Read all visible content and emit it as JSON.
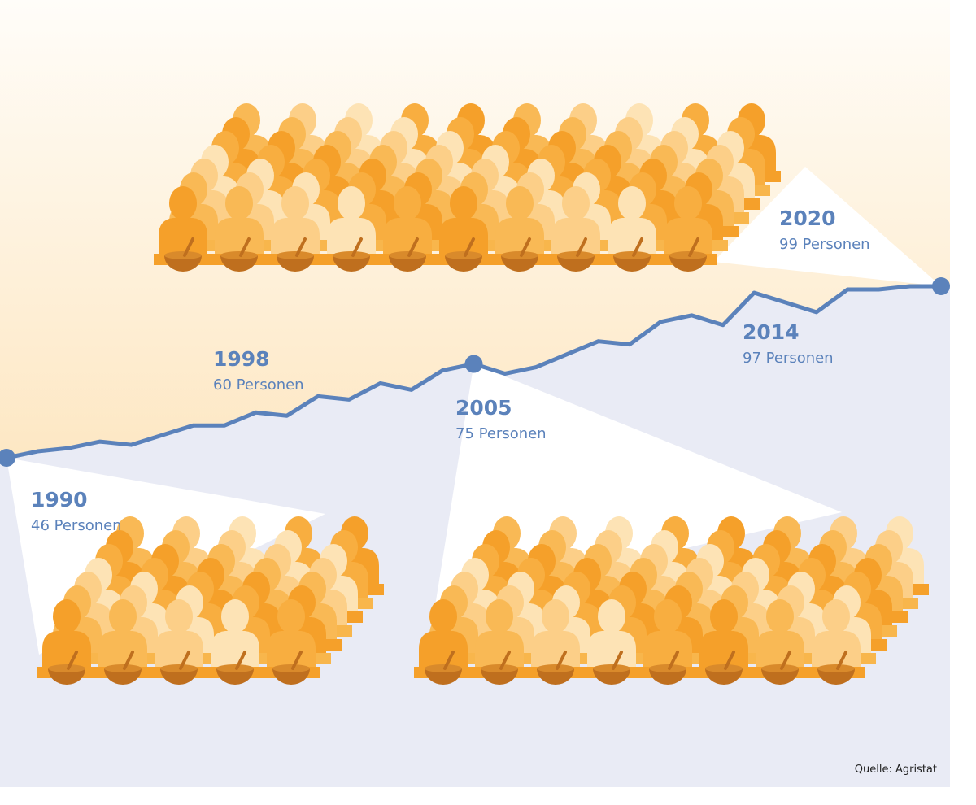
{
  "chart_data": {
    "type": "line",
    "x": [
      1990,
      1991,
      1992,
      1993,
      1994,
      1995,
      1996,
      1997,
      1998,
      1999,
      2000,
      2001,
      2002,
      2003,
      2004,
      2005,
      2006,
      2007,
      2008,
      2009,
      2010,
      2011,
      2012,
      2013,
      2014,
      2015,
      2016,
      2017,
      2018,
      2019,
      2020
    ],
    "series": [
      {
        "color": "#5b82bb",
        "values": [
          46,
          48,
          49,
          51,
          50,
          53,
          56,
          56,
          60,
          59,
          65,
          64,
          69,
          67,
          73,
          75,
          72,
          74,
          78,
          82,
          81,
          88,
          90,
          87,
          97,
          94,
          91,
          98,
          98,
          99,
          99
        ]
      }
    ],
    "annotations": [
      {
        "year": "1990",
        "text": "46 Personen"
      },
      {
        "year": "1998",
        "text": "60 Personen"
      },
      {
        "year": "2005",
        "text": "75 Personen"
      },
      {
        "year": "2014",
        "text": "97 Personen"
      },
      {
        "year": "2020",
        "text": "99 Personen"
      }
    ],
    "source": "Quelle: Agristat"
  }
}
